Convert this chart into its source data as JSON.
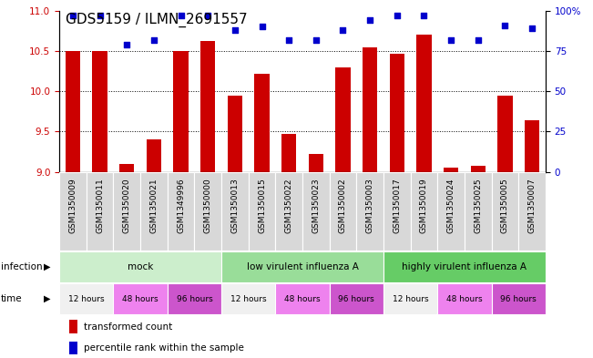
{
  "title": "GDS5159 / ILMN_2691557",
  "samples": [
    "GSM1350009",
    "GSM1350011",
    "GSM1350020",
    "GSM1350021",
    "GSM1349996",
    "GSM1350000",
    "GSM1350013",
    "GSM1350015",
    "GSM1350022",
    "GSM1350023",
    "GSM1350002",
    "GSM1350003",
    "GSM1350017",
    "GSM1350019",
    "GSM1350024",
    "GSM1350025",
    "GSM1350005",
    "GSM1350007"
  ],
  "bar_values": [
    10.5,
    10.5,
    9.1,
    9.4,
    10.5,
    10.62,
    9.95,
    10.22,
    9.47,
    9.22,
    10.3,
    10.55,
    10.47,
    10.7,
    9.05,
    9.08,
    9.95,
    9.64
  ],
  "percentile_values": [
    97,
    97,
    79,
    82,
    97,
    97,
    88,
    90,
    82,
    82,
    88,
    94,
    97,
    97,
    82,
    82,
    91,
    89
  ],
  "ylim_left": [
    9.0,
    11.0
  ],
  "ylim_right": [
    0,
    100
  ],
  "yticks_left": [
    9.0,
    9.5,
    10.0,
    10.5,
    11.0
  ],
  "yticks_right": [
    0,
    25,
    50,
    75,
    100
  ],
  "bar_color": "#cc0000",
  "dot_color": "#0000cc",
  "infection_groups": [
    {
      "label": "mock",
      "start": 0,
      "end": 6,
      "color": "#cceecc"
    },
    {
      "label": "low virulent influenza A",
      "start": 6,
      "end": 12,
      "color": "#99dd99"
    },
    {
      "label": "highly virulent influenza A",
      "start": 12,
      "end": 18,
      "color": "#66cc66"
    }
  ],
  "time_colors": {
    "12 hours": "#f0f0f0",
    "48 hours": "#ee82ee",
    "96 hours": "#cc55cc"
  },
  "time_groups": [
    {
      "label": "12 hours",
      "start": 0,
      "end": 2
    },
    {
      "label": "48 hours",
      "start": 2,
      "end": 4
    },
    {
      "label": "96 hours",
      "start": 4,
      "end": 6
    },
    {
      "label": "12 hours",
      "start": 6,
      "end": 8
    },
    {
      "label": "48 hours",
      "start": 8,
      "end": 10
    },
    {
      "label": "96 hours",
      "start": 10,
      "end": 12
    },
    {
      "label": "12 hours",
      "start": 12,
      "end": 14
    },
    {
      "label": "48 hours",
      "start": 14,
      "end": 16
    },
    {
      "label": "96 hours",
      "start": 16,
      "end": 18
    }
  ],
  "legend_bar_label": "transformed count",
  "legend_dot_label": "percentile rank within the sample",
  "infection_label": "infection",
  "time_label": "time",
  "title_fontsize": 11,
  "tick_fontsize": 7.5,
  "label_fontsize": 8.5,
  "sample_fontsize": 6.5
}
